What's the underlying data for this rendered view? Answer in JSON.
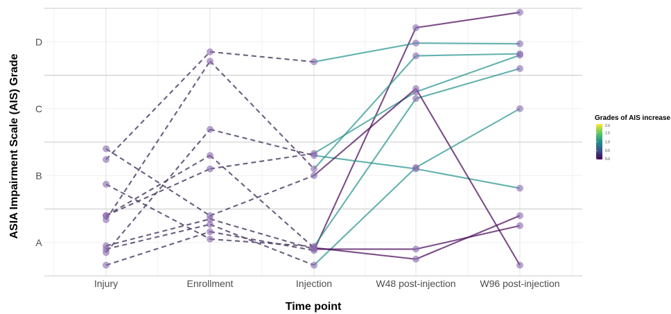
{
  "chart_data": {
    "type": "line",
    "xlabel": "Time point",
    "ylabel": "ASIA Impairment Scale (AIS) Grade",
    "categories": [
      "Injury",
      "Enrollment",
      "Injection",
      "W48 post-injection",
      "W96 post-injection"
    ],
    "y_tick_labels": [
      "A",
      "B",
      "C",
      "D"
    ],
    "ylim": [
      0.5,
      4.5
    ],
    "grid": true,
    "legend": {
      "title": "Grades of AIS increase",
      "placement": "right",
      "ticks": [
        "2.0",
        "1.5",
        "1.0",
        "0.5",
        "0.0"
      ],
      "range": [
        0,
        2
      ]
    },
    "colors": {
      "low": "#440154",
      "mid_low": "#3b528b",
      "mid": "#21918c",
      "mid_high": "#5ec962",
      "high": "#fde725"
    },
    "series": [
      {
        "points": [
          [
            0,
            0.66
          ],
          [
            1,
            1.16
          ],
          [
            2,
            0.88
          ],
          [
            3,
            4.21
          ],
          [
            4,
            4.44
          ]
        ],
        "grade_increase": 0.0
      },
      {
        "points": [
          [
            0,
            2.24
          ],
          [
            1,
            3.85
          ],
          [
            2,
            3.7
          ],
          [
            3,
            3.98
          ],
          [
            4,
            3.97
          ]
        ],
        "grade_increase": 1.0
      },
      {
        "points": [
          [
            0,
            1.87
          ],
          [
            1,
            1.05
          ],
          [
            2,
            0.94
          ],
          [
            3,
            3.15
          ],
          [
            4,
            3.6
          ]
        ],
        "grade_increase": 1.0
      },
      {
        "points": [
          [
            0,
            1.34
          ],
          [
            1,
            3.71
          ],
          [
            2,
            2.1
          ],
          [
            3,
            3.79
          ],
          [
            4,
            3.82
          ]
        ],
        "grade_increase": 1.0
      },
      {
        "points": [
          [
            0,
            0.85
          ],
          [
            1,
            2.69
          ],
          [
            2,
            2.3
          ],
          [
            3,
            2.1
          ],
          [
            4,
            1.81
          ]
        ],
        "grade_increase": 1.0
      },
      {
        "points": [
          [
            0,
            1.4
          ],
          [
            1,
            2.1
          ],
          [
            2,
            2.33
          ],
          [
            3,
            3.25
          ],
          [
            4,
            3.8
          ]
        ],
        "grade_increase": 1.0
      },
      {
        "points": [
          [
            0,
            2.4
          ],
          [
            1,
            1.4
          ],
          [
            2,
            2.0
          ],
          [
            3,
            3.3
          ],
          [
            4,
            0.66
          ]
        ],
        "grade_increase": 0.0
      },
      {
        "points": [
          [
            0,
            0.9
          ],
          [
            1,
            1.27
          ],
          [
            2,
            0.66
          ],
          [
            3,
            2.12
          ],
          [
            4,
            3.0
          ]
        ],
        "grade_increase": 1.0
      },
      {
        "points": [
          [
            0,
            0.95
          ],
          [
            1,
            1.35
          ],
          [
            2,
            0.9
          ],
          [
            3,
            0.9
          ],
          [
            4,
            1.25
          ]
        ],
        "grade_increase": 0.0
      },
      {
        "points": [
          [
            0,
            1.4
          ],
          [
            1,
            2.3
          ],
          [
            2,
            0.92
          ],
          [
            3,
            0.75
          ],
          [
            4,
            1.4
          ]
        ],
        "grade_increase": 0.0
      }
    ]
  }
}
